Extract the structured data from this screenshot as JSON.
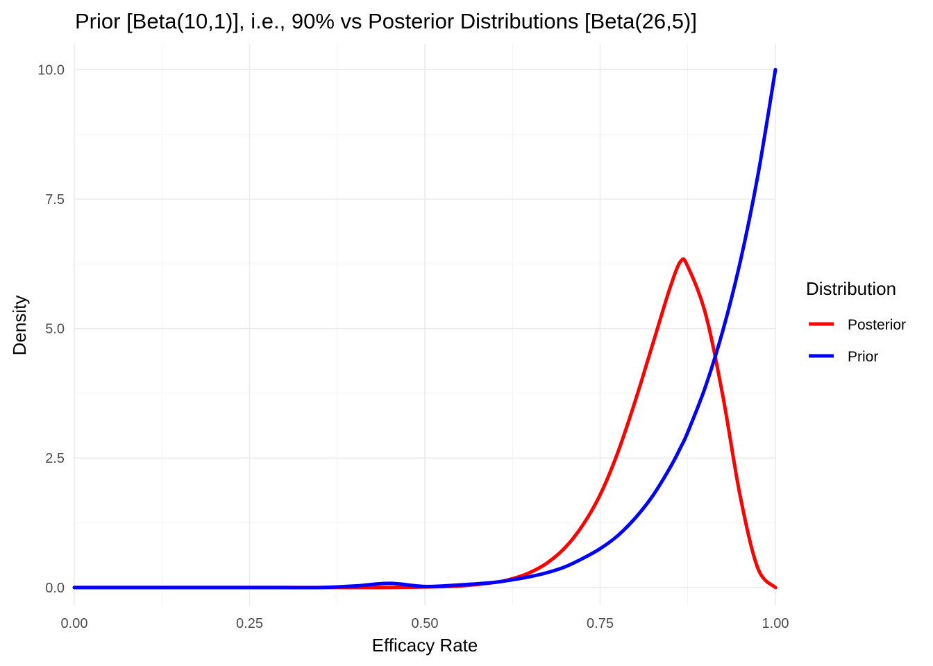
{
  "chart_data": {
    "type": "line",
    "title": "Prior [Beta(10,1)], i.e., 90% vs Posterior Distributions [Beta(26,5)]",
    "xlabel": "Efficacy Rate",
    "ylabel": "Density",
    "xlim": [
      0,
      1
    ],
    "ylim": [
      -0.35,
      10.5
    ],
    "x_ticks": [
      0,
      0.25,
      0.5,
      0.75,
      1
    ],
    "x_tick_labels": [
      "0.00",
      "0.25",
      "0.50",
      "0.75",
      "1.00"
    ],
    "y_ticks": [
      0,
      2.5,
      5,
      7.5,
      10
    ],
    "y_tick_labels": [
      "0.0",
      "2.5",
      "5.0",
      "7.5",
      "10.0"
    ],
    "grid": true,
    "legend": {
      "title": "Distribution",
      "position": "right"
    },
    "x": [
      0,
      0.05,
      0.1,
      0.15,
      0.2,
      0.25,
      0.3,
      0.35,
      0.4,
      0.45,
      0.5,
      0.55,
      0.6,
      0.625,
      0.65,
      0.675,
      0.7,
      0.725,
      0.75,
      0.775,
      0.8,
      0.825,
      0.85,
      0.865,
      0.875,
      0.9,
      0.925,
      0.95,
      0.975,
      1
    ],
    "series": [
      {
        "name": "Posterior",
        "color": "#ff0000",
        "values": [
          0,
          0,
          0,
          0,
          0,
          0,
          0,
          0,
          0,
          0,
          0.01,
          0.03,
          0.1,
          0.17,
          0.29,
          0.48,
          0.77,
          1.2,
          1.79,
          2.6,
          3.6,
          4.7,
          5.8,
          6.3,
          6.2,
          5.3,
          3.7,
          1.75,
          0.37,
          0
        ]
      },
      {
        "name": "Prior",
        "color": "#0000ff",
        "values": [
          0,
          0,
          0,
          0,
          0,
          0,
          0,
          0,
          0.03,
          0.08,
          0.02,
          0.05,
          0.1,
          0.15,
          0.21,
          0.29,
          0.4,
          0.56,
          0.75,
          1.0,
          1.34,
          1.77,
          2.32,
          2.71,
          3.0,
          3.87,
          4.96,
          6.3,
          7.96,
          10.0
        ]
      }
    ]
  }
}
